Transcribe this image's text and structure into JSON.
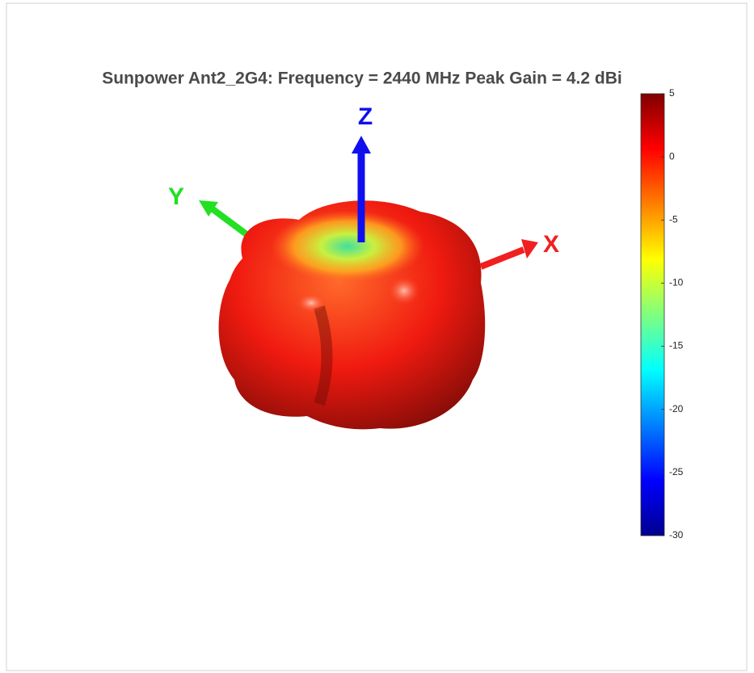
{
  "chart_data": {
    "type": "radiation-pattern-3d",
    "title": "Sunpower Ant2_2G4: Frequency = 2440 MHz  Peak Gain = 4.2 dBi",
    "axis_labels": {
      "x": "X",
      "y": "Y",
      "z": "Z"
    },
    "colorbar": {
      "colormap": "jet",
      "clim": [
        -30,
        5
      ],
      "ticks": [
        5,
        0,
        -5,
        -10,
        -15,
        -20,
        -25,
        -30
      ]
    }
  }
}
